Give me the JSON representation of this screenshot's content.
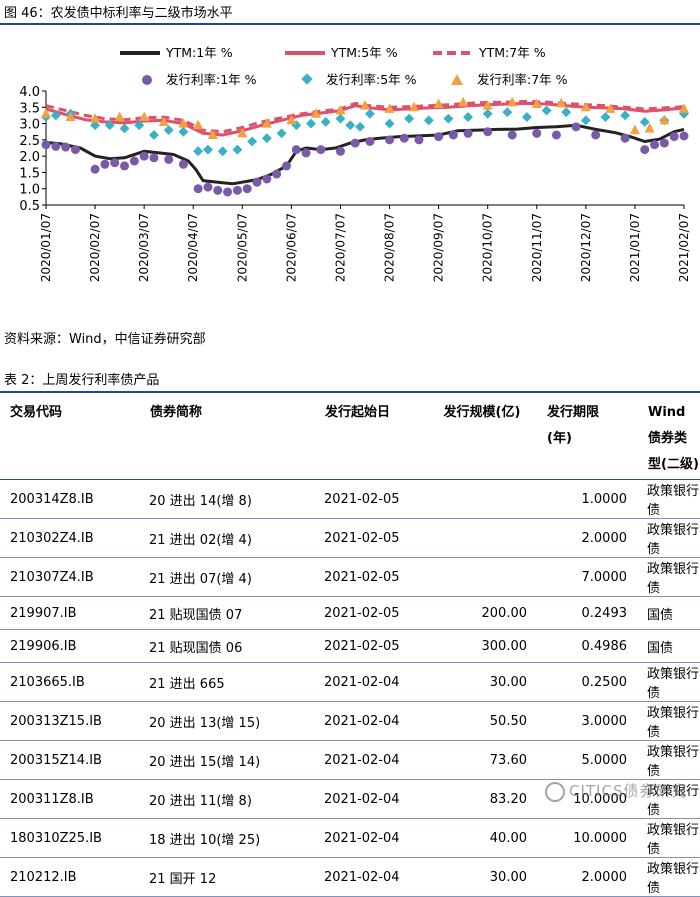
{
  "figure": {
    "caption": "图 46：农发债中标利率与二级市场水平",
    "legend": {
      "ytm1": "YTM:1年 %",
      "ytm5": "YTM:5年 %",
      "ytm7": "YTM:7年 %",
      "iss1": "发行利率:1年 %",
      "iss5": "发行利率:5年 %",
      "iss7": "发行利率:7年 %"
    }
  },
  "chart_data": {
    "type": "line",
    "ylim": [
      0.5,
      4.0
    ],
    "yticks": [
      "0.5",
      "1.0",
      "1.5",
      "2.0",
      "2.5",
      "3.0",
      "3.5",
      "4.0"
    ],
    "xticks": [
      "2020/01/07",
      "2020/02/07",
      "2020/03/07",
      "2020/04/07",
      "2020/05/07",
      "2020/06/07",
      "2020/07/07",
      "2020/08/07",
      "2020/09/07",
      "2020/10/07",
      "2020/11/07",
      "2020/12/07",
      "2021/01/07",
      "2021/02/07"
    ],
    "x_range_months": [
      0,
      13
    ],
    "series": [
      {
        "name": "YTM:1年 %",
        "kind": "line",
        "color": "#222222",
        "points": [
          [
            0,
            2.42
          ],
          [
            0.3,
            2.38
          ],
          [
            0.7,
            2.25
          ],
          [
            1.0,
            2.0
          ],
          [
            1.3,
            1.92
          ],
          [
            1.6,
            1.95
          ],
          [
            2.0,
            2.15
          ],
          [
            2.3,
            2.1
          ],
          [
            2.6,
            2.05
          ],
          [
            2.9,
            1.85
          ],
          [
            3.05,
            1.6
          ],
          [
            3.2,
            1.25
          ],
          [
            3.5,
            1.2
          ],
          [
            3.8,
            1.15
          ],
          [
            4.0,
            1.2
          ],
          [
            4.3,
            1.28
          ],
          [
            4.6,
            1.45
          ],
          [
            4.9,
            1.7
          ],
          [
            5.1,
            2.15
          ],
          [
            5.3,
            2.25
          ],
          [
            5.6,
            2.2
          ],
          [
            5.9,
            2.25
          ],
          [
            6.2,
            2.4
          ],
          [
            6.5,
            2.5
          ],
          [
            6.8,
            2.55
          ],
          [
            7.2,
            2.6
          ],
          [
            7.6,
            2.62
          ],
          [
            8.0,
            2.65
          ],
          [
            8.4,
            2.78
          ],
          [
            8.8,
            2.8
          ],
          [
            9.2,
            2.82
          ],
          [
            9.6,
            2.83
          ],
          [
            10.0,
            2.88
          ],
          [
            10.4,
            2.9
          ],
          [
            10.8,
            2.95
          ],
          [
            11.2,
            2.82
          ],
          [
            11.6,
            2.72
          ],
          [
            11.9,
            2.6
          ],
          [
            12.2,
            2.45
          ],
          [
            12.5,
            2.52
          ],
          [
            12.8,
            2.75
          ],
          [
            13.0,
            2.82
          ]
        ]
      },
      {
        "name": "YTM:5年 %",
        "kind": "line",
        "color": "#e0506a",
        "points": [
          [
            0,
            3.45
          ],
          [
            0.4,
            3.28
          ],
          [
            0.8,
            3.12
          ],
          [
            1.2,
            3.05
          ],
          [
            1.6,
            3.02
          ],
          [
            2.0,
            3.08
          ],
          [
            2.4,
            3.1
          ],
          [
            2.8,
            3.0
          ],
          [
            3.0,
            2.85
          ],
          [
            3.2,
            2.7
          ],
          [
            3.6,
            2.65
          ],
          [
            4.0,
            2.78
          ],
          [
            4.4,
            2.95
          ],
          [
            4.8,
            3.1
          ],
          [
            5.2,
            3.25
          ],
          [
            5.6,
            3.32
          ],
          [
            6.0,
            3.4
          ],
          [
            6.3,
            3.55
          ],
          [
            6.6,
            3.48
          ],
          [
            7.0,
            3.42
          ],
          [
            7.4,
            3.45
          ],
          [
            7.8,
            3.48
          ],
          [
            8.2,
            3.5
          ],
          [
            8.6,
            3.55
          ],
          [
            9.0,
            3.58
          ],
          [
            9.4,
            3.6
          ],
          [
            9.8,
            3.62
          ],
          [
            10.2,
            3.6
          ],
          [
            10.6,
            3.55
          ],
          [
            11.0,
            3.5
          ],
          [
            11.4,
            3.48
          ],
          [
            11.8,
            3.45
          ],
          [
            12.2,
            3.38
          ],
          [
            12.6,
            3.42
          ],
          [
            13.0,
            3.48
          ]
        ]
      },
      {
        "name": "YTM:7年 %",
        "kind": "line",
        "dashed": true,
        "color": "#e0506a",
        "points": [
          [
            0,
            3.55
          ],
          [
            0.4,
            3.4
          ],
          [
            0.8,
            3.25
          ],
          [
            1.2,
            3.15
          ],
          [
            1.6,
            3.12
          ],
          [
            2.0,
            3.18
          ],
          [
            2.4,
            3.2
          ],
          [
            2.8,
            3.1
          ],
          [
            3.0,
            2.95
          ],
          [
            3.2,
            2.8
          ],
          [
            3.6,
            2.75
          ],
          [
            4.0,
            2.88
          ],
          [
            4.4,
            3.05
          ],
          [
            4.8,
            3.18
          ],
          [
            5.2,
            3.3
          ],
          [
            5.6,
            3.38
          ],
          [
            6.0,
            3.45
          ],
          [
            6.3,
            3.62
          ],
          [
            6.6,
            3.55
          ],
          [
            7.0,
            3.5
          ],
          [
            7.4,
            3.52
          ],
          [
            7.8,
            3.55
          ],
          [
            8.2,
            3.58
          ],
          [
            8.6,
            3.62
          ],
          [
            9.0,
            3.65
          ],
          [
            9.4,
            3.66
          ],
          [
            9.8,
            3.68
          ],
          [
            10.2,
            3.66
          ],
          [
            10.6,
            3.62
          ],
          [
            11.0,
            3.58
          ],
          [
            11.4,
            3.55
          ],
          [
            11.8,
            3.5
          ],
          [
            12.2,
            3.45
          ],
          [
            12.6,
            3.48
          ],
          [
            13.0,
            3.52
          ]
        ]
      },
      {
        "name": "发行利率:1年 %",
        "kind": "scatter",
        "marker": "circle",
        "color": "#7a5aa8",
        "points": [
          [
            0,
            2.35
          ],
          [
            0.2,
            2.3
          ],
          [
            0.4,
            2.28
          ],
          [
            0.6,
            2.2
          ],
          [
            1.0,
            1.6
          ],
          [
            1.2,
            1.75
          ],
          [
            1.4,
            1.8
          ],
          [
            1.6,
            1.7
          ],
          [
            1.8,
            1.85
          ],
          [
            2.0,
            2.0
          ],
          [
            2.2,
            1.95
          ],
          [
            2.5,
            1.9
          ],
          [
            2.8,
            1.75
          ],
          [
            3.1,
            1.0
          ],
          [
            3.3,
            1.05
          ],
          [
            3.5,
            0.95
          ],
          [
            3.7,
            0.9
          ],
          [
            3.9,
            0.95
          ],
          [
            4.1,
            1.0
          ],
          [
            4.3,
            1.2
          ],
          [
            4.5,
            1.3
          ],
          [
            4.7,
            1.45
          ],
          [
            4.9,
            1.7
          ],
          [
            5.1,
            2.2
          ],
          [
            5.3,
            2.1
          ],
          [
            5.6,
            2.2
          ],
          [
            6.0,
            2.15
          ],
          [
            6.3,
            2.4
          ],
          [
            6.6,
            2.45
          ],
          [
            7.0,
            2.5
          ],
          [
            7.3,
            2.55
          ],
          [
            7.6,
            2.5
          ],
          [
            8.0,
            2.6
          ],
          [
            8.3,
            2.65
          ],
          [
            8.6,
            2.7
          ],
          [
            9.0,
            2.75
          ],
          [
            9.5,
            2.65
          ],
          [
            10.0,
            2.7
          ],
          [
            10.4,
            2.65
          ],
          [
            10.8,
            2.9
          ],
          [
            11.2,
            2.65
          ],
          [
            11.8,
            2.55
          ],
          [
            12.2,
            2.2
          ],
          [
            12.4,
            2.35
          ],
          [
            12.6,
            2.4
          ],
          [
            12.8,
            2.6
          ],
          [
            13.0,
            2.62
          ]
        ]
      },
      {
        "name": "发行利率:5年 %",
        "kind": "scatter",
        "marker": "diamond",
        "color": "#3ab0c8",
        "points": [
          [
            0,
            3.2
          ],
          [
            0.2,
            3.25
          ],
          [
            0.5,
            3.3
          ],
          [
            1.0,
            2.95
          ],
          [
            1.3,
            2.95
          ],
          [
            1.6,
            2.85
          ],
          [
            1.9,
            2.95
          ],
          [
            2.2,
            2.65
          ],
          [
            2.5,
            2.8
          ],
          [
            2.8,
            2.75
          ],
          [
            3.1,
            2.15
          ],
          [
            3.3,
            2.2
          ],
          [
            3.6,
            2.15
          ],
          [
            3.9,
            2.2
          ],
          [
            4.2,
            2.45
          ],
          [
            4.5,
            2.55
          ],
          [
            4.8,
            2.7
          ],
          [
            5.1,
            2.95
          ],
          [
            5.4,
            3.0
          ],
          [
            5.7,
            3.05
          ],
          [
            6.0,
            3.15
          ],
          [
            6.2,
            2.95
          ],
          [
            6.4,
            2.9
          ],
          [
            6.6,
            3.3
          ],
          [
            7.0,
            3.0
          ],
          [
            7.4,
            3.15
          ],
          [
            7.8,
            3.1
          ],
          [
            8.2,
            3.15
          ],
          [
            8.6,
            3.2
          ],
          [
            9.0,
            3.3
          ],
          [
            9.4,
            3.35
          ],
          [
            9.8,
            3.2
          ],
          [
            10.2,
            3.4
          ],
          [
            10.6,
            3.35
          ],
          [
            11.0,
            3.1
          ],
          [
            11.4,
            3.2
          ],
          [
            11.8,
            3.25
          ],
          [
            12.2,
            3.05
          ],
          [
            12.6,
            3.1
          ],
          [
            13.0,
            3.3
          ]
        ]
      },
      {
        "name": "发行利率:7年 %",
        "kind": "scatter",
        "marker": "triangle",
        "color": "#f4a040",
        "points": [
          [
            0,
            3.3
          ],
          [
            0.5,
            3.2
          ],
          [
            1.0,
            3.15
          ],
          [
            1.5,
            3.2
          ],
          [
            2.0,
            3.2
          ],
          [
            2.4,
            3.05
          ],
          [
            2.8,
            3.0
          ],
          [
            3.1,
            2.95
          ],
          [
            3.4,
            2.65
          ],
          [
            4.0,
            2.7
          ],
          [
            4.5,
            3.0
          ],
          [
            5.0,
            3.1
          ],
          [
            5.5,
            3.3
          ],
          [
            6.0,
            3.4
          ],
          [
            6.5,
            3.55
          ],
          [
            7.0,
            3.45
          ],
          [
            7.5,
            3.5
          ],
          [
            8.0,
            3.6
          ],
          [
            8.5,
            3.65
          ],
          [
            9.0,
            3.55
          ],
          [
            9.5,
            3.65
          ],
          [
            10.0,
            3.6
          ],
          [
            10.5,
            3.62
          ],
          [
            11.0,
            3.5
          ],
          [
            11.5,
            3.45
          ],
          [
            12.0,
            2.8
          ],
          [
            12.3,
            2.85
          ],
          [
            12.6,
            3.1
          ],
          [
            13.0,
            3.45
          ]
        ]
      }
    ]
  },
  "source": "资料来源：Wind，中信证券研究部",
  "table": {
    "caption": "表 2：上周发行利率债产品",
    "headers": [
      "交易代码",
      "债券简称",
      "发行起始日",
      "发行规模(亿)",
      "发行期限\n(年)",
      "Wind 债券类\n型(二级)"
    ],
    "rows": [
      [
        "200314Z8.IB",
        "20 进出 14(增 8)",
        "2021-02-05",
        "",
        "1.0000",
        "政策银行债"
      ],
      [
        "210302Z4.IB",
        "21 进出 02(增 4)",
        "2021-02-05",
        "",
        "2.0000",
        "政策银行债"
      ],
      [
        "210307Z4.IB",
        "21 进出 07(增 4)",
        "2021-02-05",
        "",
        "7.0000",
        "政策银行债"
      ],
      [
        "219907.IB",
        "21 贴现国债 07",
        "2021-02-05",
        "200.00",
        "0.2493",
        "国债"
      ],
      [
        "219906.IB",
        "21 贴现国债 06",
        "2021-02-05",
        "300.00",
        "0.4986",
        "国债"
      ],
      [
        "2103665.IB",
        "21 进出 665",
        "2021-02-04",
        "30.00",
        "0.2500",
        "政策银行债"
      ],
      [
        "200313Z15.IB",
        "20 进出 13(增 15)",
        "2021-02-04",
        "50.50",
        "3.0000",
        "政策银行债"
      ],
      [
        "200315Z14.IB",
        "20 进出 15(增 14)",
        "2021-02-04",
        "73.60",
        "5.0000",
        "政策银行债"
      ],
      [
        "200311Z8.IB",
        "20 进出 11(增 8)",
        "2021-02-04",
        "83.20",
        "10.0000",
        "政策银行债"
      ],
      [
        "180310Z25.IB",
        "18 进出 10(增 25)",
        "2021-02-04",
        "40.00",
        "10.0000",
        "政策银行债"
      ],
      [
        "210212.IB",
        "21 国开 12",
        "2021-02-04",
        "30.00",
        "2.0000",
        "政策银行债"
      ]
    ]
  },
  "watermark": "CITICS债券研究"
}
